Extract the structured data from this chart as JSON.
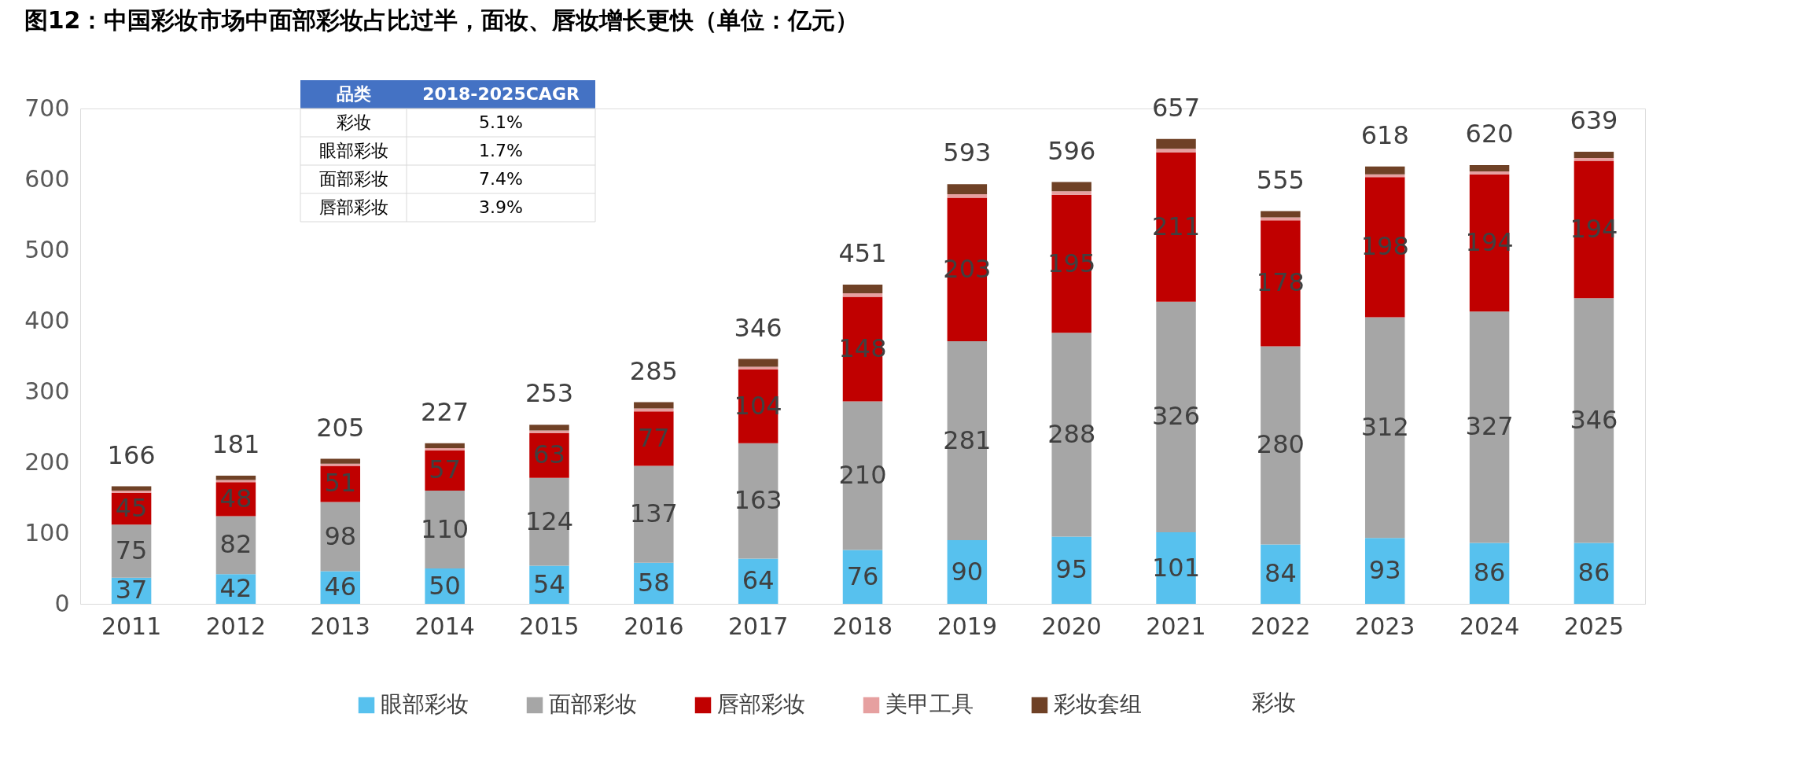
{
  "chart_data": {
    "type": "bar",
    "stacked": true,
    "title": "图12：中国彩妆市场中面部彩妆占比过半，面妆、唇妆增长更快（单位：亿元）",
    "categories": [
      "2011",
      "2012",
      "2013",
      "2014",
      "2015",
      "2016",
      "2017",
      "2018",
      "2019",
      "2020",
      "2021",
      "2022",
      "2023",
      "2024",
      "2025"
    ],
    "series": [
      {
        "name": "眼部彩妆",
        "color": "#57c1ee",
        "data_labels": true,
        "values": [
          37,
          42,
          46,
          50,
          54,
          58,
          64,
          76,
          90,
          95,
          101,
          84,
          93,
          86,
          86
        ]
      },
      {
        "name": "面部彩妆",
        "color": "#a6a6a6",
        "data_labels": true,
        "values": [
          75,
          82,
          98,
          110,
          124,
          137,
          163,
          210,
          281,
          288,
          326,
          280,
          312,
          327,
          346
        ]
      },
      {
        "name": "唇部彩妆",
        "color": "#c00000",
        "data_labels": true,
        "values": [
          45,
          48,
          51,
          57,
          63,
          77,
          104,
          148,
          203,
          195,
          211,
          178,
          198,
          194,
          194
        ]
      },
      {
        "name": "美甲工具",
        "color": "#e6a0a0",
        "values": [
          3,
          3,
          3,
          3,
          4,
          4,
          4,
          5,
          5,
          5,
          5,
          4,
          4,
          4,
          4
        ]
      },
      {
        "name": "彩妆套组",
        "color": "#6f4126",
        "values": [
          6,
          6,
          7,
          7,
          8,
          9,
          11,
          12,
          14,
          13,
          14,
          9,
          11,
          9,
          9
        ]
      }
    ],
    "totals": [
      "166",
      "181",
      "205",
      "227",
      "253",
      "285",
      "346",
      "451",
      "593",
      "596",
      "657",
      "555",
      "618",
      "620",
      "639"
    ],
    "ylim": [
      0,
      700
    ],
    "yticks": [
      0,
      100,
      200,
      300,
      400,
      500,
      600,
      700
    ],
    "grid": false,
    "legend": "bottom",
    "annotations": [
      "彩妆",
      [
        "品类",
        "2018-2025CAGR"
      ],
      [
        "彩妆",
        "5.1%"
      ],
      [
        "眼部彩妆",
        "1.7%"
      ],
      [
        "面部彩妆",
        "7.4%"
      ],
      [
        "唇部彩妆",
        "3.9%"
      ]
    ]
  }
}
